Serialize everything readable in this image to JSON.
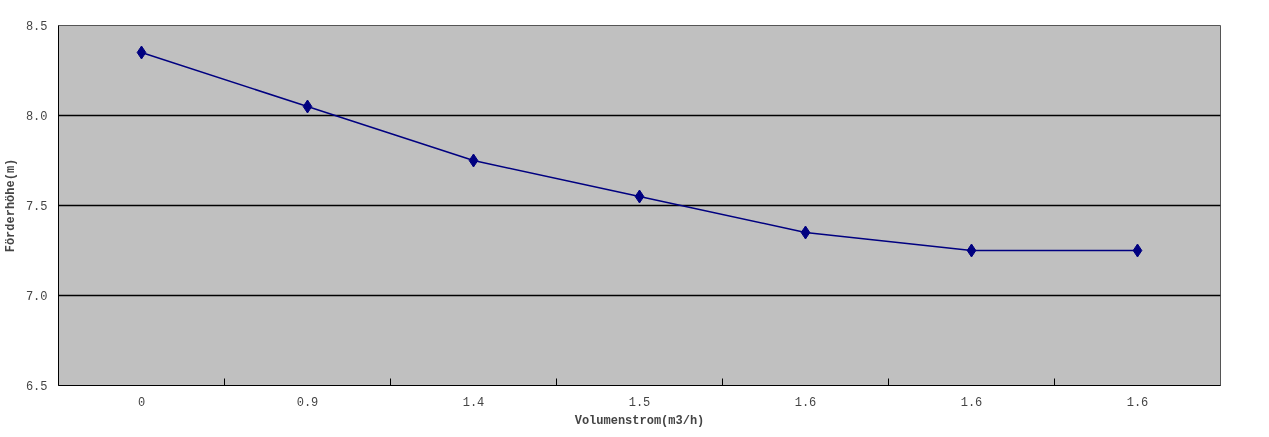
{
  "chart_data": {
    "type": "line",
    "xlabel": "Volumenstrom(m3/h)",
    "ylabel": "Förderhöhe(m)",
    "categories": [
      "0",
      "0.9",
      "1.4",
      "1.5",
      "1.6",
      "1.6",
      "1.6"
    ],
    "series": [
      {
        "color": "#000080",
        "values": [
          8.35,
          8.05,
          7.75,
          7.55,
          7.35,
          7.25,
          7.25
        ]
      }
    ],
    "ylim": [
      6.5,
      8.5
    ],
    "yticks": [
      {
        "value": 6.5,
        "label": "6.5"
      },
      {
        "value": 7.0,
        "label": "7.0"
      },
      {
        "value": 7.5,
        "label": "7.5"
      },
      {
        "value": 8.0,
        "label": "8.0"
      },
      {
        "value": 8.5,
        "label": "8.5"
      }
    ],
    "grid": "y",
    "marker": "diamond",
    "line_style": "solid"
  }
}
